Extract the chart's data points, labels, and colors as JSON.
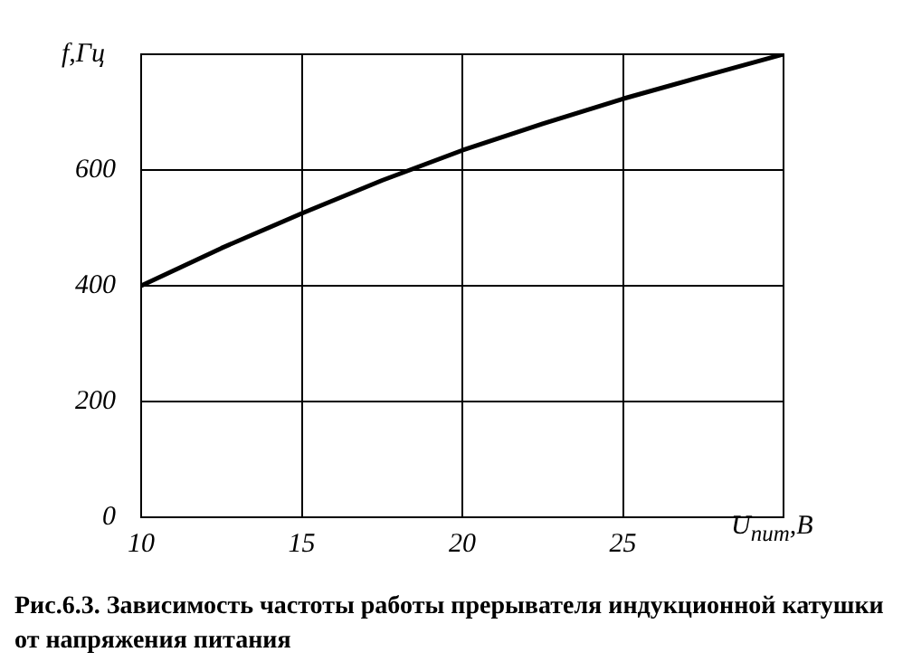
{
  "chart_data": {
    "type": "line",
    "title": "Рис.6.3. Зависимость частоты работы прерывателя индукционной катушки от напряжения питания",
    "xlabel": "U$_{пит}$,В",
    "ylabel": "f,Гц",
    "x": [
      10,
      12.5,
      15,
      17.5,
      20,
      22.5,
      25,
      27.5,
      30
    ],
    "series": [
      {
        "color": "#000000",
        "values": [
          400,
          465,
          525,
          582,
          634,
          680,
          723,
          762,
          800
        ]
      }
    ],
    "xlim": [
      10,
      30
    ],
    "xticks": [
      10,
      15,
      20,
      25
    ],
    "ylim": [
      0,
      800
    ],
    "yticks": [
      0,
      200,
      400,
      600
    ],
    "grid": true,
    "legend": false,
    "marker": "none",
    "line_style": "solid"
  }
}
